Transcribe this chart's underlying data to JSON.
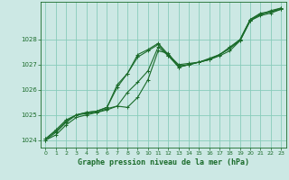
{
  "xlabel": "Graphe pression niveau de la mer (hPa)",
  "bg_color": "#cce8e4",
  "grid_color": "#88ccbb",
  "line_color": "#1a6b2a",
  "marker": "+",
  "xlim": [
    -0.5,
    23.5
  ],
  "ylim": [
    1023.7,
    1029.5
  ],
  "yticks": [
    1024,
    1025,
    1026,
    1027,
    1028
  ],
  "xticks": [
    0,
    1,
    2,
    3,
    4,
    5,
    6,
    7,
    8,
    9,
    10,
    11,
    12,
    13,
    14,
    15,
    16,
    17,
    18,
    19,
    20,
    21,
    22,
    23
  ],
  "series": [
    [
      1024.0,
      1024.2,
      1024.6,
      1024.9,
      1025.0,
      1025.1,
      1025.2,
      1025.35,
      1025.3,
      1025.7,
      1026.4,
      1027.55,
      1027.45,
      1026.9,
      1027.0,
      1027.1,
      1027.2,
      1027.35,
      1027.55,
      1027.95,
      1028.75,
      1028.95,
      1029.05,
      1029.2
    ],
    [
      1024.0,
      1024.3,
      1024.7,
      1025.0,
      1025.05,
      1025.1,
      1025.25,
      1025.35,
      1025.9,
      1026.3,
      1026.75,
      1027.7,
      1027.35,
      1026.95,
      1027.0,
      1027.1,
      1027.2,
      1027.4,
      1027.65,
      1028.0,
      1028.8,
      1029.05,
      1029.1,
      1029.25
    ],
    [
      1024.05,
      1024.35,
      1024.75,
      1025.0,
      1025.1,
      1025.15,
      1025.3,
      1026.1,
      1026.65,
      1027.3,
      1027.55,
      1027.8,
      1027.35,
      1026.9,
      1027.0,
      1027.1,
      1027.2,
      1027.4,
      1027.65,
      1027.95,
      1028.75,
      1029.0,
      1029.1,
      1029.2
    ],
    [
      1024.05,
      1024.4,
      1024.8,
      1025.0,
      1025.1,
      1025.15,
      1025.3,
      1026.2,
      1026.65,
      1027.4,
      1027.6,
      1027.85,
      1027.4,
      1027.0,
      1027.05,
      1027.1,
      1027.25,
      1027.4,
      1027.7,
      1028.0,
      1028.8,
      1029.0,
      1029.15,
      1029.25
    ]
  ]
}
